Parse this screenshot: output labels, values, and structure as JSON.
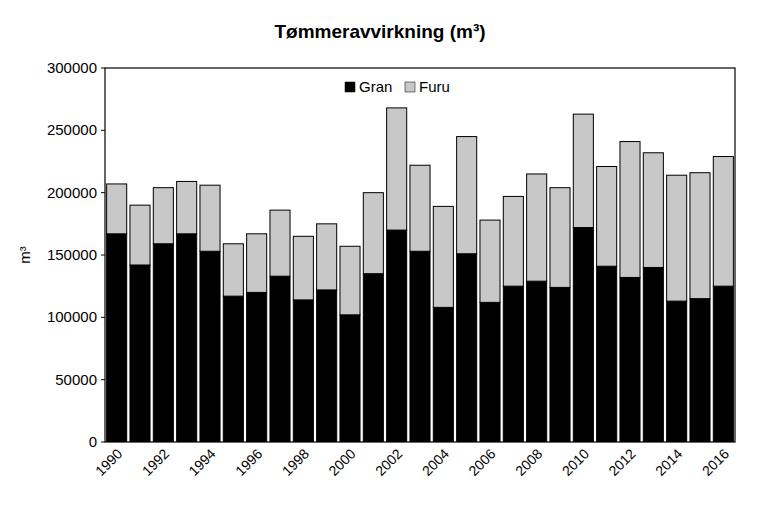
{
  "chart_data": {
    "type": "bar",
    "title": "Tømmeravvirkning (m³)",
    "y_label": "m³",
    "stacked": true,
    "legend": "top",
    "grid": false,
    "categories": [
      "1990",
      null,
      "1992",
      null,
      "1994",
      null,
      "1996",
      null,
      "1998",
      null,
      "2000",
      null,
      "2002",
      null,
      "2004",
      null,
      "2006",
      null,
      "2008",
      null,
      "2010",
      null,
      "2012",
      null,
      "2014",
      null,
      "2016"
    ],
    "series": [
      {
        "name": "Gran",
        "color": "#000000",
        "values": [
          167000,
          142000,
          159000,
          167000,
          153000,
          117000,
          120000,
          133000,
          114000,
          122000,
          102000,
          135000,
          170000,
          153000,
          108000,
          151000,
          112000,
          125000,
          129000,
          124000,
          172000,
          141000,
          132000,
          140000,
          113000,
          115000,
          125000
        ]
      },
      {
        "name": "Furu",
        "color": "#c8c8c8",
        "values": [
          40000,
          48000,
          45000,
          42000,
          53000,
          42000,
          47000,
          53000,
          51000,
          53000,
          55000,
          65000,
          98000,
          69000,
          81000,
          94000,
          66000,
          72000,
          86000,
          80000,
          91000,
          80000,
          109000,
          92000,
          101000,
          101000,
          104000
        ]
      }
    ],
    "ylim": [
      0,
      300000
    ],
    "yticks": [
      0,
      50000,
      100000,
      150000,
      200000,
      250000,
      300000
    ]
  }
}
